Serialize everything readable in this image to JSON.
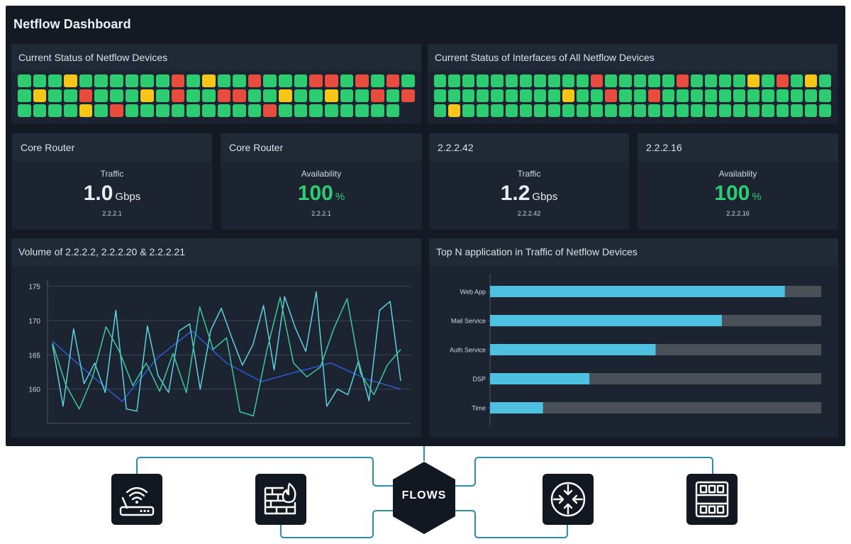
{
  "dashboard": {
    "title": "Netflow Dashboard"
  },
  "status_devices": {
    "title": "Current Status of Netflow Devices",
    "rows": [
      "gggyggggggrgyggrgggrrgrgrg",
      "gyggrgggygrggrrggyggyggrgr",
      "ggggyg rgggggggggrgggggggg"
    ]
  },
  "status_interfaces": {
    "title": "Current Status of Interfaces of All Netflow Devices",
    "rows": [
      "gggggggggggrgggggrggggygrgyg",
      "gggggggggyggrggrgggggggggggg",
      "gygggggggggggggggggggggggggg"
    ]
  },
  "colors": {
    "green": "#2ecc71",
    "yellow": "#f5c518",
    "red": "#e74c3c",
    "bar_fill": "#4fc1e0",
    "bar_track": "#4a5058",
    "line_blue": "#2e5bd8",
    "line_cyan": "#5fd0e0",
    "line_teal": "#3ec9a0"
  },
  "kpis": [
    {
      "title": "Core Router",
      "label": "Traffic",
      "value": "1.0",
      "unit": "Gbps",
      "sub": "2.2.2.1"
    },
    {
      "title": "Core Router",
      "label": "Availability",
      "value": "100",
      "unit": "%",
      "sub": "2.2.2.1"
    },
    {
      "title": "2.2.2.42",
      "label": "Traffic",
      "value": "1.2",
      "unit": "Gbps",
      "sub": "2.2.2.42"
    },
    {
      "title": "2.2.2.16",
      "label": "Availablity",
      "value": "100",
      "unit": "%",
      "sub": "2.2.2.16"
    }
  ],
  "volume_panel": {
    "title": "Volume of 2.2.2.2, 2.2.2.20 & 2.2.2.21"
  },
  "topn_panel": {
    "title": "Top N application in Traffic of Netflow Devices"
  },
  "chart_data": [
    {
      "type": "line",
      "title": "Volume of 2.2.2.2, 2.2.2.20 & 2.2.2.21",
      "yticks": [
        160,
        165,
        170,
        175
      ],
      "ylim": [
        155,
        176
      ],
      "grid": true,
      "series": [
        {
          "color": "#2e5bd8",
          "values": [
            167,
            162.5,
            158.2,
            164.5,
            168.5,
            163.8,
            161.1,
            162.5,
            163.8,
            161.5,
            160
          ]
        },
        {
          "color": "#5fd0e0",
          "values": [
            166.5,
            157.5,
            168.8,
            160.8,
            163.8,
            159.5,
            171.5,
            157.1,
            156.8,
            169.2,
            162,
            159.5,
            168.5,
            169.5,
            160,
            168.6,
            171.8,
            167.5,
            163.5,
            166.5,
            172.2,
            162.8,
            173.5,
            169,
            165.5,
            174.2,
            157.5,
            160,
            159.2,
            164.1,
            158.3,
            171.5,
            172.8,
            161.2
          ]
        },
        {
          "color": "#3ec9a0",
          "values": [
            166.7,
            160.6,
            157.1,
            161.8,
            169.1,
            165.5,
            160.5,
            163.8,
            159.7,
            165.2,
            159.5,
            172,
            165.8,
            167.5,
            156.7,
            156.1,
            165.6,
            173.4,
            163.8,
            161.8,
            163.2,
            168.8,
            173.2,
            162.3,
            159.2,
            163.5,
            165.8
          ]
        }
      ]
    },
    {
      "type": "bar",
      "title": "Top N application in Traffic of Netflow Devices",
      "categories": [
        "Web App",
        "Mail Service",
        "Auth Service",
        "DSP",
        "Time"
      ],
      "values": [
        89,
        70,
        50,
        30,
        16
      ],
      "ylim": [
        0,
        100
      ]
    }
  ],
  "flows": {
    "label": "FLOWS"
  },
  "devices": [
    "wifi-router-icon",
    "firewall-icon",
    "router-icon",
    "server-rack-icon"
  ]
}
